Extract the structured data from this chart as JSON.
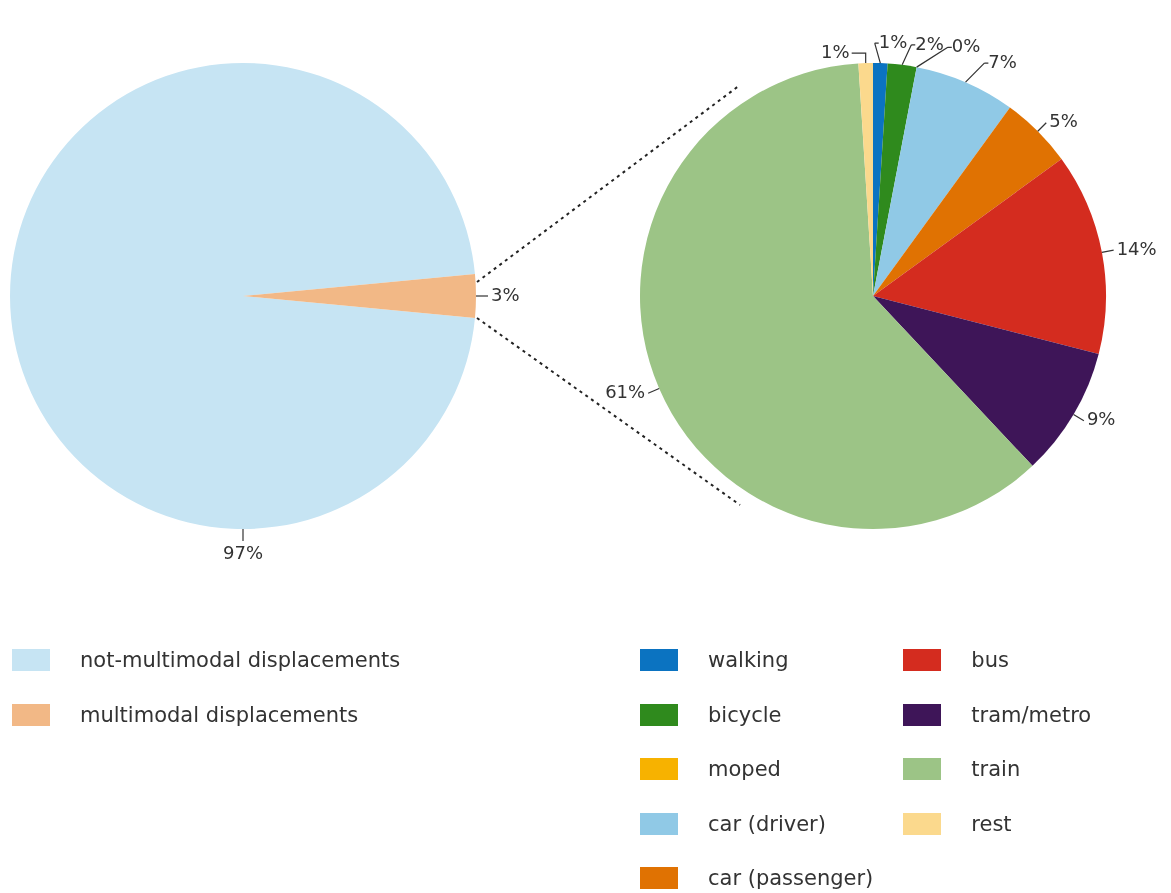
{
  "chart_data": [
    {
      "type": "pie",
      "categories": [
        "not-multimodal displacements",
        "multimodal displacements"
      ],
      "values": [
        97,
        3
      ],
      "value_labels": [
        "97%",
        "3%"
      ],
      "colors": [
        "#c6e4f3",
        "#f2b886"
      ],
      "legend": "bottom"
    },
    {
      "type": "pie",
      "categories": [
        "walking",
        "bicycle",
        "moped",
        "car (driver)",
        "car (passenger)",
        "bus",
        "tram/metro",
        "train",
        "rest"
      ],
      "values": [
        1,
        2,
        0,
        7,
        5,
        14,
        9,
        61,
        1
      ],
      "value_labels": [
        "1%",
        "2%",
        "0%",
        "7%",
        "5%",
        "14%",
        "9%",
        "61%",
        "1%"
      ],
      "colors": [
        "#0b73c1",
        "#2f8a1d",
        "#f7b200",
        "#90c9e6",
        "#e07202",
        "#d42c1f",
        "#3e1558",
        "#9cc486",
        "#fbd98d"
      ],
      "legend": "bottom"
    }
  ]
}
